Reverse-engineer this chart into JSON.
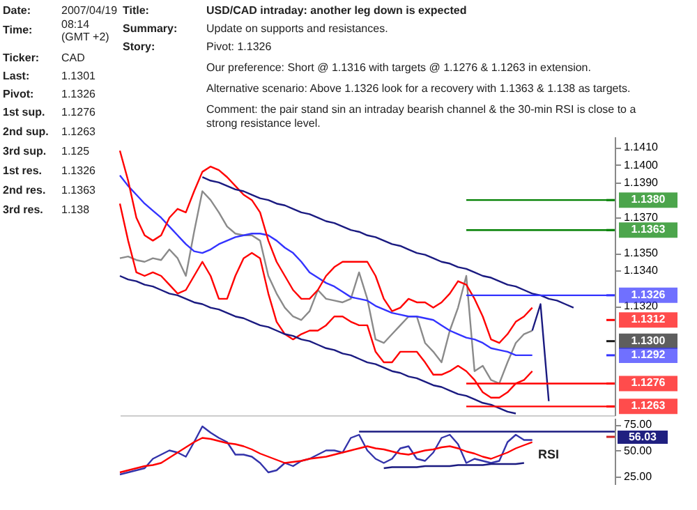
{
  "chart_data": [
    {
      "type": "line",
      "title": "USD/CAD intraday: another leg down is expected",
      "subtitle": "Update on supports and resistances.",
      "annotations": [
        "Date:",
        "2007/04/19",
        "Time:",
        "08:14 (GMT +2)",
        "Ticker:",
        "CAD",
        "Last:",
        "1.1301",
        "Pivot:",
        "1.1326",
        "1st sup.",
        "1.1276",
        "2nd sup.",
        "1.1263",
        "3rd sup.",
        "1.125",
        "1st res.",
        "1.1326",
        "2nd res.",
        "1.1363",
        "3rd res.",
        "1.138",
        "Title:",
        "Summary:",
        "Story:",
        "Pivot: 1.1326",
        "Our preference: Short @ 1.1316 with targets @ 1.1276 & 1.1263 in extension.",
        "Alternative scenario: Above 1.1326 look for a recovery with 1.1363 & 1.138 as targets.",
        "Comment: the pair stand sin an intraday bearish channel & the 30-min RSI is close to a strong resistance level."
      ],
      "categories": [
        null,
        null,
        null,
        null,
        null,
        null,
        null,
        null,
        null,
        null,
        null,
        null,
        null,
        null,
        null,
        null,
        null,
        null,
        null,
        null,
        null,
        null,
        null,
        null,
        null,
        null,
        null,
        null,
        null,
        null,
        null,
        null,
        null,
        null,
        null,
        null,
        null,
        null,
        null,
        null,
        null,
        null,
        null,
        null,
        null,
        null,
        null,
        null,
        null,
        null,
        null,
        null,
        null,
        null,
        null,
        null,
        null,
        null,
        null,
        null,
        null
      ],
      "ylim": [
        1.1258,
        1.1416
      ],
      "yticks": [
        {
          "value": 1.141,
          "label": "1.1410"
        },
        {
          "value": 1.14,
          "label": "1.1400"
        },
        {
          "value": 1.139,
          "label": "1.1390"
        },
        {
          "value": 1.137,
          "label": "1.1370"
        },
        {
          "value": 1.135,
          "label": "1.1350"
        },
        {
          "value": 1.134,
          "label": "1.1340"
        },
        {
          "value": 1.132,
          "label": "1.1320"
        }
      ],
      "tick_labels": "y",
      "series": [
        {
          "color": "#8a8a8a",
          "values": [
            1.1347,
            1.1348,
            1.1346,
            1.1345,
            1.1347,
            1.1346,
            1.1352,
            1.1347,
            1.1337,
            1.1362,
            1.1385,
            1.138,
            1.1373,
            1.1365,
            1.1361,
            1.136,
            1.136,
            1.1357,
            1.1337,
            1.1327,
            1.1319,
            1.1314,
            1.1312,
            1.1317,
            1.1329,
            1.1324,
            1.1323,
            1.1322,
            1.1324,
            1.1339,
            1.1324,
            1.1301,
            1.1299,
            1.1304,
            1.1309,
            1.1314,
            1.1314,
            1.1299,
            1.1294,
            1.1288,
            1.1306,
            1.1319,
            1.1337,
            1.1283,
            1.1286,
            1.1278,
            1.1276,
            1.1288,
            1.1299,
            1.1304,
            1.1306,
            null,
            null,
            null,
            null,
            null,
            null,
            null,
            null,
            null,
            null
          ]
        },
        {
          "color": "#3333ff",
          "values": [
            1.1394,
            1.1388,
            1.1383,
            1.1378,
            1.1374,
            1.137,
            1.1365,
            1.136,
            1.1355,
            1.1351,
            1.135,
            1.1352,
            1.1355,
            1.1357,
            1.1359,
            1.136,
            1.1361,
            1.1361,
            1.136,
            1.1357,
            1.1353,
            1.135,
            1.1345,
            1.1339,
            1.1336,
            1.1333,
            1.1331,
            1.1328,
            1.1325,
            1.1324,
            1.1323,
            1.132,
            1.1318,
            1.1316,
            1.1315,
            1.1314,
            1.1314,
            1.1313,
            1.1312,
            1.1309,
            1.1306,
            1.1304,
            1.1302,
            1.1301,
            1.1299,
            1.1296,
            1.1295,
            1.1294,
            1.1292,
            1.1292,
            1.1292,
            null,
            null,
            null,
            null,
            null,
            null,
            null,
            null,
            null,
            null
          ]
        },
        {
          "color": "#ff0000",
          "values": [
            1.1408,
            1.1391,
            1.137,
            1.136,
            1.1357,
            1.136,
            1.137,
            1.1375,
            1.1373,
            1.1385,
            1.1396,
            1.1399,
            1.1397,
            1.1393,
            1.1388,
            1.1383,
            1.138,
            1.1373,
            1.1357,
            1.1345,
            1.1337,
            1.1329,
            1.1324,
            1.1324,
            1.1329,
            1.1337,
            1.1342,
            1.1345,
            1.1345,
            1.1345,
            1.1345,
            1.1337,
            1.1324,
            1.1317,
            1.1319,
            1.1324,
            1.1322,
            1.1322,
            1.1319,
            1.1322,
            1.1327,
            1.1334,
            1.1332,
            1.1324,
            1.1314,
            1.1301,
            1.1299,
            1.1304,
            1.1311,
            1.1314,
            1.1319,
            null,
            null,
            null,
            null,
            null,
            null,
            null,
            null,
            null,
            null
          ]
        },
        {
          "color": "#ff0000",
          "values": [
            1.1378,
            1.1357,
            1.1339,
            1.1337,
            1.1339,
            1.1337,
            1.1332,
            1.1327,
            1.1329,
            1.1337,
            1.1345,
            1.1337,
            1.1324,
            1.1324,
            1.1337,
            1.1347,
            1.135,
            1.1347,
            1.1327,
            1.1311,
            1.1304,
            1.1301,
            1.1304,
            1.1306,
            1.1306,
            1.1309,
            1.1314,
            1.1314,
            1.1311,
            1.1309,
            1.1309,
            1.1294,
            1.1288,
            1.1288,
            1.1294,
            1.1294,
            1.1294,
            1.1288,
            1.1281,
            1.1281,
            1.1283,
            1.1286,
            1.1283,
            1.1278,
            1.1271,
            1.1268,
            1.1268,
            1.1271,
            1.1276,
            1.1278,
            1.1283,
            null,
            null,
            null,
            null,
            null,
            null,
            null,
            null,
            null,
            null
          ]
        },
        {
          "color": "#1a1a80",
          "values": [
            null,
            null,
            null,
            null,
            null,
            null,
            null,
            null,
            null,
            null,
            1.1393,
            1.1391,
            1.139,
            1.1388,
            1.1386,
            1.1385,
            1.1383,
            1.1381,
            1.138,
            1.1378,
            1.1377,
            1.1375,
            1.1373,
            1.1372,
            1.137,
            1.1368,
            1.1367,
            1.1365,
            1.1363,
            1.1362,
            1.136,
            1.1359,
            1.1357,
            1.1355,
            1.1354,
            1.1352,
            1.135,
            1.1349,
            1.1347,
            1.1345,
            1.1344,
            1.1342,
            1.1341,
            1.1339,
            1.1337,
            1.1336,
            1.1334,
            1.1332,
            1.1331,
            1.1329,
            1.1327,
            1.1326,
            1.1324,
            1.1323,
            1.1321,
            1.1319,
            null,
            null,
            null,
            null,
            null
          ]
        },
        {
          "color": "#1a1a80",
          "values": [
            1.1337,
            1.1335,
            1.1334,
            1.1332,
            1.1331,
            1.1329,
            1.1327,
            1.1326,
            1.1324,
            1.1322,
            1.1321,
            1.1319,
            1.1318,
            1.1316,
            1.1314,
            1.1313,
            1.1311,
            1.1309,
            1.1308,
            1.1306,
            1.1304,
            1.1303,
            1.1301,
            1.13,
            1.1298,
            1.1296,
            1.1295,
            1.1293,
            1.1292,
            1.129,
            1.1288,
            1.1287,
            1.1285,
            1.1283,
            1.1282,
            1.128,
            1.1279,
            1.1277,
            1.1275,
            1.1274,
            1.1272,
            1.127,
            1.1269,
            1.1267,
            1.1265,
            1.1264,
            1.1262,
            1.126,
            1.1259,
            null,
            null,
            null,
            null,
            null,
            null,
            null,
            null,
            null,
            null,
            null,
            null
          ]
        },
        {
          "color": "#1a1a80",
          "values": [
            null,
            null,
            null,
            null,
            null,
            null,
            null,
            null,
            null,
            null,
            null,
            null,
            null,
            null,
            null,
            null,
            null,
            null,
            null,
            null,
            null,
            null,
            null,
            null,
            null,
            null,
            null,
            null,
            null,
            null,
            null,
            null,
            null,
            null,
            null,
            null,
            null,
            null,
            null,
            null,
            null,
            null,
            null,
            null,
            null,
            null,
            null,
            null,
            null,
            null,
            1.1306,
            1.1321,
            1.1266,
            null,
            null,
            null,
            null,
            null,
            null,
            null,
            null
          ]
        },
        {
          "color": "#007f00",
          "values": [
            null,
            null,
            null,
            null,
            null,
            null,
            null,
            null,
            null,
            null,
            null,
            null,
            null,
            null,
            null,
            null,
            null,
            null,
            null,
            null,
            null,
            null,
            null,
            null,
            null,
            null,
            null,
            null,
            null,
            null,
            null,
            null,
            null,
            null,
            null,
            null,
            null,
            null,
            null,
            null,
            null,
            null,
            1.138,
            1.138,
            1.138,
            1.138,
            1.138,
            1.138,
            1.138,
            1.138,
            1.138,
            1.138,
            1.138,
            1.138,
            1.138,
            1.138,
            1.138,
            1.138,
            1.138,
            1.138,
            1.138
          ]
        },
        {
          "color": "#007f00",
          "values": [
            null,
            null,
            null,
            null,
            null,
            null,
            null,
            null,
            null,
            null,
            null,
            null,
            null,
            null,
            null,
            null,
            null,
            null,
            null,
            null,
            null,
            null,
            null,
            null,
            null,
            null,
            null,
            null,
            null,
            null,
            null,
            null,
            null,
            null,
            null,
            null,
            null,
            null,
            null,
            null,
            null,
            null,
            1.1363,
            1.1363,
            1.1363,
            1.1363,
            1.1363,
            1.1363,
            1.1363,
            1.1363,
            1.1363,
            1.1363,
            1.1363,
            1.1363,
            1.1363,
            1.1363,
            1.1363,
            1.1363,
            1.1363,
            1.1363,
            1.1363
          ]
        },
        {
          "color": "#3333ff",
          "values": [
            null,
            null,
            null,
            null,
            null,
            null,
            null,
            null,
            null,
            null,
            null,
            null,
            null,
            null,
            null,
            null,
            null,
            null,
            null,
            null,
            null,
            null,
            null,
            null,
            null,
            null,
            null,
            null,
            null,
            null,
            null,
            null,
            null,
            null,
            null,
            null,
            null,
            null,
            null,
            null,
            null,
            null,
            1.1326,
            1.1326,
            1.1326,
            1.1326,
            1.1326,
            1.1326,
            1.1326,
            1.1326,
            1.1326,
            1.1326,
            1.1326,
            1.1326,
            1.1326,
            1.1326,
            1.1326,
            1.1326,
            1.1326,
            1.1326,
            1.1326
          ]
        },
        {
          "color": "#ff0000",
          "values": [
            null,
            null,
            null,
            null,
            null,
            null,
            null,
            null,
            null,
            null,
            null,
            null,
            null,
            null,
            null,
            null,
            null,
            null,
            null,
            null,
            null,
            null,
            null,
            null,
            null,
            null,
            null,
            null,
            null,
            null,
            null,
            null,
            null,
            null,
            null,
            null,
            null,
            null,
            null,
            null,
            null,
            null,
            1.1276,
            1.1276,
            1.1276,
            1.1276,
            1.1276,
            1.1276,
            1.1276,
            1.1276,
            1.1276,
            1.1276,
            1.1276,
            1.1276,
            1.1276,
            1.1276,
            1.1276,
            1.1276,
            1.1276,
            1.1276,
            1.1276
          ]
        },
        {
          "color": "#ff0000",
          "values": [
            null,
            null,
            null,
            null,
            null,
            null,
            null,
            null,
            null,
            null,
            null,
            null,
            null,
            null,
            null,
            null,
            null,
            null,
            null,
            null,
            null,
            null,
            null,
            null,
            null,
            null,
            null,
            null,
            null,
            null,
            null,
            null,
            null,
            null,
            null,
            null,
            null,
            null,
            null,
            null,
            null,
            null,
            1.1263,
            1.1263,
            1.1263,
            1.1263,
            1.1263,
            1.1263,
            1.1263,
            1.1263,
            1.1263,
            1.1263,
            1.1263,
            1.1263,
            1.1263,
            1.1263,
            1.1263,
            1.1263,
            1.1263,
            1.1263,
            1.1263
          ]
        }
      ],
      "ref_lines": [
        {
          "axis": "y",
          "value": 1.138,
          "label": "1.1380",
          "color": "#007f00"
        },
        {
          "axis": "y",
          "value": 1.1363,
          "label": "1.1363",
          "color": "#007f00"
        },
        {
          "axis": "y",
          "value": 1.1326,
          "label": "1.1326",
          "color": "#3333ff"
        },
        {
          "axis": "y",
          "value": 1.1312,
          "label": "1.1312",
          "color": "#ff0000"
        },
        {
          "axis": "y",
          "value": 1.13,
          "label": "1.1300",
          "color": "#1a1a1a"
        },
        {
          "axis": "y",
          "value": 1.1292,
          "label": "1.1292",
          "color": "#3333ff"
        },
        {
          "axis": "y",
          "value": 1.1276,
          "label": "1.1276",
          "color": "#ff0000"
        },
        {
          "axis": "y",
          "value": 1.1263,
          "label": "1.1263",
          "color": "#ff0000"
        }
      ]
    },
    {
      "type": "line",
      "annotations": [
        "RSI",
        "56.03"
      ],
      "categories": [
        null,
        null,
        null,
        null,
        null,
        null,
        null,
        null,
        null,
        null,
        null,
        null,
        null,
        null,
        null,
        null,
        null,
        null,
        null,
        null,
        null,
        null,
        null,
        null,
        null,
        null,
        null,
        null,
        null,
        null,
        null,
        null,
        null,
        null,
        null,
        null,
        null,
        null,
        null,
        null,
        null,
        null,
        null,
        null,
        null,
        null,
        null,
        null,
        null,
        null,
        null,
        null,
        null,
        null,
        null,
        null,
        null,
        null,
        null,
        null,
        null
      ],
      "ylim": [
        17,
        81
      ],
      "yticks": [
        {
          "value": 75,
          "label": "75.00"
        },
        {
          "value": 50,
          "label": "50.00"
        },
        {
          "value": 25,
          "label": "25.00"
        }
      ],
      "tick_labels": "y",
      "series": [
        {
          "color": "#3333aa",
          "values": [
            27,
            29,
            31,
            33,
            42,
            46,
            50,
            48,
            44,
            58,
            73,
            67,
            62,
            58,
            46,
            46,
            44,
            38,
            29,
            31,
            38,
            35,
            40,
            42,
            46,
            50,
            50,
            48,
            62,
            65,
            50,
            42,
            38,
            42,
            52,
            54,
            42,
            40,
            48,
            62,
            65,
            56,
            38,
            42,
            40,
            38,
            40,
            58,
            65,
            60,
            60,
            null,
            null,
            null,
            null,
            null,
            null,
            null,
            null,
            null,
            null
          ]
        },
        {
          "color": "#ff0000",
          "values": [
            29,
            31,
            33,
            35,
            36,
            38,
            43,
            48,
            53,
            58,
            62,
            61,
            59,
            57,
            56,
            54,
            51,
            47,
            44,
            41,
            38,
            39,
            40,
            42,
            43,
            44,
            46,
            48,
            50,
            52,
            54,
            52,
            51,
            49,
            47,
            46,
            48,
            50,
            51,
            53,
            54,
            52,
            49,
            47,
            44,
            42,
            45,
            48,
            52,
            55,
            58,
            null,
            null,
            null,
            null,
            null,
            null,
            null,
            null,
            null,
            null
          ]
        },
        {
          "color": "#1a1a80",
          "values": [
            null,
            null,
            null,
            null,
            null,
            null,
            null,
            null,
            null,
            null,
            null,
            null,
            null,
            null,
            null,
            null,
            null,
            null,
            null,
            null,
            null,
            null,
            null,
            null,
            null,
            null,
            null,
            null,
            null,
            68,
            68,
            68,
            68,
            68,
            68,
            68,
            68,
            68,
            68,
            68,
            68,
            68,
            68,
            68,
            68,
            68,
            68,
            68,
            68,
            68,
            68,
            68,
            68,
            68,
            68,
            68,
            68,
            68,
            68,
            68,
            68
          ]
        },
        {
          "color": "#1a1a80",
          "values": [
            null,
            null,
            null,
            null,
            null,
            null,
            null,
            null,
            null,
            null,
            null,
            null,
            null,
            null,
            null,
            null,
            null,
            null,
            null,
            null,
            null,
            null,
            null,
            null,
            null,
            null,
            null,
            null,
            null,
            null,
            null,
            null,
            33,
            34,
            34,
            34,
            34,
            35,
            35,
            35,
            35,
            36,
            36,
            36,
            36,
            37,
            37,
            37,
            37,
            38,
            null,
            null,
            null,
            null,
            null,
            null,
            null,
            null,
            null,
            null,
            null
          ]
        }
      ],
      "grid": false
    }
  ]
}
